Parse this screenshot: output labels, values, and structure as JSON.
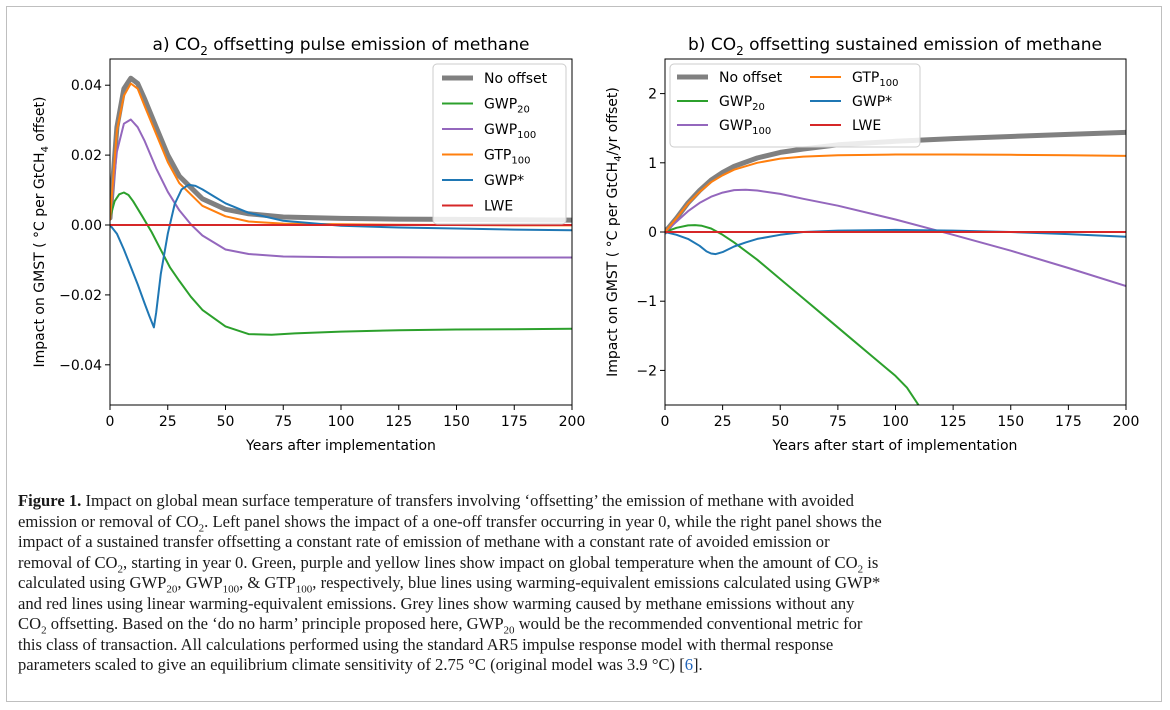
{
  "panels": [
    {
      "title": "a) CO₂ offsetting pulse emission of methane",
      "xlabel": "Years after implementation",
      "ylabel": "Impact on GMST ( °C per GtCH₄ offset)",
      "xticks": [
        "0",
        "25",
        "50",
        "75",
        "100",
        "125",
        "150",
        "175",
        "200"
      ],
      "yticks": [
        "−0.04",
        "−0.02",
        "0.00",
        "0.02",
        "0.04"
      ]
    },
    {
      "title": "b) CO₂ offsetting sustained emission of methane",
      "xlabel": "Years after start of implementation",
      "ylabel": "Impact on GMST ( °C per GtCH₄/yr offset)",
      "xticks": [
        "0",
        "25",
        "50",
        "75",
        "100",
        "125",
        "150",
        "175",
        "200"
      ],
      "yticks": [
        "−2",
        "−1",
        "0",
        "1",
        "2"
      ]
    }
  ],
  "legend": [
    "No offset",
    "GWP20",
    "GWP100",
    "GTP100",
    "GWP*",
    "LWE"
  ],
  "colors": {
    "No offset": "#808080",
    "GWP20": "#2ca02c",
    "GWP100": "#9467bd",
    "GTP100": "#ff7f0e",
    "GWP*": "#1f77b4",
    "LWE": "#d62728"
  },
  "chart_data": [
    {
      "type": "line",
      "title": "a) CO2 offsetting pulse emission of methane",
      "xlabel": "Years after implementation",
      "ylabel": "Impact on GMST ( °C per GtCH4 offset)",
      "xlim": [
        0,
        200
      ],
      "ylim": [
        -0.0515,
        0.0475
      ],
      "grid": false,
      "legend_position": "top-right",
      "series": [
        {
          "name": "No offset",
          "x": [
            0,
            3,
            6,
            9,
            12,
            15,
            20,
            25,
            30,
            40,
            50,
            60,
            75,
            100,
            125,
            150,
            175,
            200
          ],
          "y": [
            0.002,
            0.028,
            0.039,
            0.042,
            0.0405,
            0.036,
            0.028,
            0.02,
            0.014,
            0.0075,
            0.0045,
            0.0032,
            0.0023,
            0.0019,
            0.0017,
            0.0016,
            0.0015,
            0.0014
          ]
        },
        {
          "name": "GWP20",
          "x": [
            0,
            2,
            4,
            6,
            8,
            10,
            14,
            18,
            22,
            26,
            30,
            35,
            40,
            50,
            60,
            70,
            80,
            100,
            125,
            150,
            175,
            200
          ],
          "y": [
            0.002,
            0.0068,
            0.0088,
            0.0093,
            0.0086,
            0.0068,
            0.0025,
            -0.002,
            -0.0071,
            -0.0122,
            -0.016,
            -0.0205,
            -0.0243,
            -0.029,
            -0.0312,
            -0.0314,
            -0.031,
            -0.0305,
            -0.0301,
            -0.0299,
            -0.0298,
            -0.0297
          ]
        },
        {
          "name": "GWP100",
          "x": [
            0,
            3,
            6,
            9,
            12,
            15,
            20,
            25,
            30,
            35,
            40,
            50,
            60,
            75,
            100,
            125,
            150,
            175,
            200
          ],
          "y": [
            0.002,
            0.021,
            0.029,
            0.0302,
            0.028,
            0.024,
            0.0162,
            0.0095,
            0.0042,
            0.0002,
            -0.003,
            -0.007,
            -0.0083,
            -0.009,
            -0.0092,
            -0.0092,
            -0.0093,
            -0.0093,
            -0.0093
          ]
        },
        {
          "name": "GTP100",
          "x": [
            0,
            3,
            6,
            9,
            12,
            15,
            20,
            25,
            30,
            40,
            50,
            60,
            75,
            100,
            125,
            150,
            175,
            200
          ],
          "y": [
            0.0015,
            0.027,
            0.037,
            0.0405,
            0.039,
            0.034,
            0.026,
            0.018,
            0.012,
            0.0055,
            0.0025,
            0.001,
            0.0004,
            0.0002,
            0.0001,
            0.0,
            -0.0001,
            -0.0001
          ]
        },
        {
          "name": "GWP*",
          "x": [
            0,
            3,
            6,
            9,
            12,
            15,
            17,
            19,
            20,
            22,
            25,
            28,
            31,
            34,
            37,
            40,
            45,
            50,
            60,
            75,
            100,
            125,
            150,
            175,
            200
          ],
          "y": [
            0.0,
            -0.0025,
            -0.007,
            -0.012,
            -0.017,
            -0.0225,
            -0.026,
            -0.0293,
            -0.025,
            -0.014,
            -0.0025,
            0.006,
            0.0102,
            0.0115,
            0.0112,
            0.0102,
            0.0082,
            0.0062,
            0.0035,
            0.0012,
            -0.0002,
            -0.0007,
            -0.001,
            -0.0013,
            -0.0015
          ]
        },
        {
          "name": "LWE",
          "x": [
            0,
            200
          ],
          "y": [
            0.0,
            0.0
          ]
        }
      ]
    },
    {
      "type": "line",
      "title": "b) CO2 offsetting sustained emission of methane",
      "xlabel": "Years after start of implementation",
      "ylabel": "Impact on GMST ( °C per GtCH4/yr offset)",
      "xlim": [
        0,
        200
      ],
      "ylim": [
        -2.5,
        2.5
      ],
      "grid": false,
      "legend_position": "top-left",
      "series": [
        {
          "name": "No offset",
          "x": [
            0,
            5,
            10,
            15,
            20,
            25,
            30,
            40,
            50,
            60,
            75,
            100,
            125,
            150,
            175,
            200
          ],
          "y": [
            0.0,
            0.2,
            0.42,
            0.6,
            0.75,
            0.86,
            0.95,
            1.07,
            1.15,
            1.2,
            1.26,
            1.31,
            1.35,
            1.38,
            1.41,
            1.44
          ]
        },
        {
          "name": "GWP20",
          "x": [
            0,
            5,
            10,
            13,
            16,
            20,
            25,
            30,
            40,
            50,
            60,
            70,
            80,
            90,
            100,
            105,
            110
          ],
          "y": [
            0.0,
            0.06,
            0.095,
            0.1,
            0.09,
            0.05,
            -0.04,
            -0.15,
            -0.4,
            -0.68,
            -0.96,
            -1.24,
            -1.52,
            -1.8,
            -2.08,
            -2.25,
            -2.5
          ]
        },
        {
          "name": "GWP100",
          "x": [
            0,
            5,
            10,
            15,
            20,
            25,
            30,
            35,
            40,
            50,
            60,
            75,
            100,
            125,
            150,
            175,
            200
          ],
          "y": [
            0.0,
            0.15,
            0.3,
            0.42,
            0.51,
            0.57,
            0.605,
            0.61,
            0.6,
            0.55,
            0.48,
            0.38,
            0.18,
            -0.04,
            -0.27,
            -0.52,
            -0.78
          ]
        },
        {
          "name": "GTP100",
          "x": [
            0,
            5,
            10,
            15,
            20,
            25,
            30,
            40,
            50,
            60,
            75,
            100,
            125,
            150,
            175,
            200
          ],
          "y": [
            0.0,
            0.2,
            0.41,
            0.58,
            0.72,
            0.82,
            0.9,
            1.0,
            1.06,
            1.09,
            1.11,
            1.12,
            1.12,
            1.115,
            1.11,
            1.1
          ]
        },
        {
          "name": "GWP*",
          "x": [
            0,
            5,
            10,
            15,
            18,
            20,
            22,
            25,
            30,
            35,
            40,
            50,
            60,
            75,
            100,
            125,
            150,
            175,
            200
          ],
          "y": [
            0.0,
            -0.04,
            -0.1,
            -0.2,
            -0.28,
            -0.31,
            -0.32,
            -0.29,
            -0.21,
            -0.15,
            -0.1,
            -0.04,
            0.0,
            0.02,
            0.03,
            0.02,
            0.0,
            -0.03,
            -0.07
          ]
        },
        {
          "name": "LWE",
          "x": [
            0,
            200
          ],
          "y": [
            0.0,
            0.0
          ]
        }
      ]
    }
  ],
  "caption": {
    "label": "Figure 1.",
    "line1": " Impact on global mean surface temperature of transfers involving ‘offsetting’ the emission of methane with avoided",
    "line2a": "emission or removal of CO",
    "line2b": ". Left panel shows the impact of a one-off transfer occurring in year 0, while the right panel shows the",
    "line3": "impact of a sustained transfer offsetting a constant rate of emission of methane with a constant rate of avoided emission or",
    "line4a": "removal of CO",
    "line4b": ", starting in year 0. Green, purple and yellow lines show impact on global temperature when the amount of CO",
    "line4c": " is",
    "line5a": "calculated using GWP",
    "line5b": ", GWP",
    "line5c": ", & GTP",
    "line5d": ", respectively, blue lines using warming-equivalent emissions calculated using GWP*",
    "line6": "and red lines using linear warming-equivalent emissions. Grey lines show warming caused by methane emissions without any",
    "line7a": "CO",
    "line7b": " offsetting. Based on the ‘do no harm’ principle proposed here, GWP",
    "line7c": " would be the recommended conventional metric for",
    "line8": "this class of transaction. All calculations performed using the standard AR5 impulse response model with thermal response",
    "line9a": "parameters scaled to give an equilibrium climate sensitivity of 2.75 °C (original model was 3.9 °C) [",
    "line9ref": "6",
    "line9b": "].",
    "sub2": "2",
    "sub20": "20",
    "sub100": "100"
  }
}
